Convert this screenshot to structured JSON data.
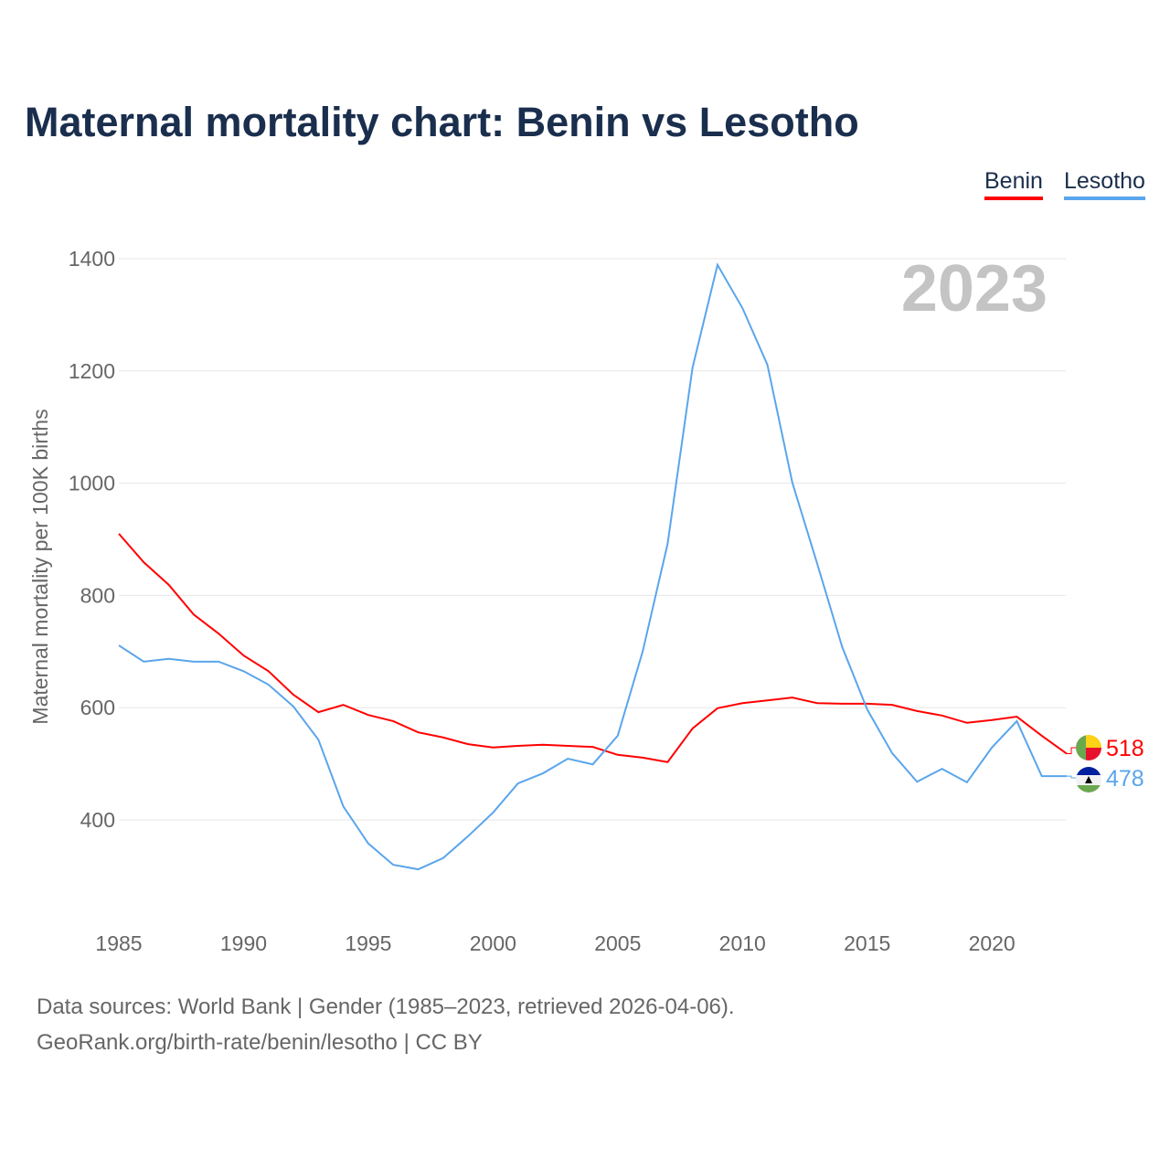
{
  "title": "Maternal mortality chart: Benin vs Lesotho",
  "footer": {
    "line1": "Data sources: World Bank | Gender (1985–2023, retrieved 2026-04-06).",
    "line2": "GeoRank.org/birth-rate/benin/lesotho | CC BY"
  },
  "chart_data": {
    "type": "line",
    "title": "Maternal mortality chart: Benin vs Lesotho",
    "ylabel": "Maternal mortality per 100K births",
    "xlabel": "",
    "year_label": "2023",
    "xlim": [
      1985,
      2023
    ],
    "ylim": [
      220,
      1420
    ],
    "xticks": [
      1985,
      1990,
      1995,
      2000,
      2005,
      2010,
      2015,
      2020
    ],
    "yticks": [
      400,
      600,
      800,
      1000,
      1200,
      1400
    ],
    "grid": true,
    "legend_placement": "top-right",
    "x": [
      1985,
      1986,
      1987,
      1988,
      1989,
      1990,
      1991,
      1992,
      1993,
      1994,
      1995,
      1996,
      1997,
      1998,
      1999,
      2000,
      2001,
      2002,
      2003,
      2004,
      2005,
      2006,
      2007,
      2008,
      2009,
      2010,
      2011,
      2012,
      2013,
      2014,
      2015,
      2016,
      2017,
      2018,
      2019,
      2020,
      2021,
      2022,
      2023
    ],
    "series": [
      {
        "name": "Benin",
        "color": "#ff0000",
        "end_label": "518",
        "values": [
          910,
          859,
          819,
          766,
          732,
          693,
          665,
          623,
          592,
          605,
          587,
          576,
          556,
          547,
          535,
          529,
          532,
          534,
          532,
          530,
          516,
          511,
          503,
          563,
          599,
          608,
          613,
          618,
          608,
          607,
          607,
          605,
          594,
          586,
          573,
          578,
          584,
          550,
          518
        ]
      },
      {
        "name": "Lesotho",
        "color": "#5aa5ec",
        "end_label": "478",
        "values": [
          711,
          682,
          687,
          682,
          682,
          665,
          641,
          602,
          543,
          424,
          358,
          320,
          312,
          332,
          371,
          413,
          465,
          483,
          509,
          499,
          550,
          700,
          892,
          1206,
          1389,
          1312,
          1211,
          1001,
          856,
          708,
          597,
          519,
          468,
          491,
          467,
          529,
          576,
          478,
          478
        ]
      }
    ]
  }
}
